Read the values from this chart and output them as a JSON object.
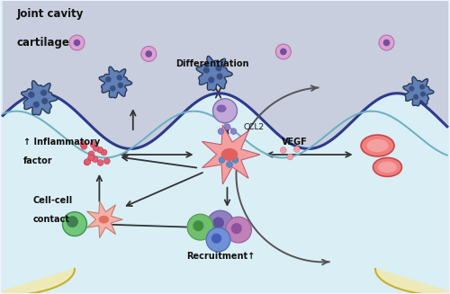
{
  "title": "Joint cavity",
  "cartilage_label": "cartilage",
  "bg_outer": "#f0f4ff",
  "border_color": "#4466aa",
  "cavity_color": "#c8cedd",
  "lower_color": "#daeef5",
  "wave_dark": "#2d3a8c",
  "wave_teal": "#6ab0c0",
  "wave_fill": "#bcc4d8",
  "bone_fill": "#eeeab8",
  "bone_edge": "#c8b030",
  "osteoclast_body": "#6080b8",
  "osteoclast_edge": "#2a3a5a",
  "osteoclast_nuc": "#3a5080",
  "floating_cell": "#e0a0d0",
  "floating_cell_ec": "#b070b0",
  "floating_nuc": "#7050a0",
  "asf_color": "#f5a0a0",
  "asf_edge": "#c06070",
  "asf_nuc": "#e06060",
  "asf_small_color": "#f5b0a8",
  "asf_small_nuc": "#e07060",
  "infl_dot": "#e06070",
  "infl_dot_ec": "#cc3050",
  "ccl2_dot": "#9080c8",
  "ccl2_dot_ec": "#7060a8",
  "vegf_dot": "#f0a0a8",
  "vegf_dot_ec": "#d08090",
  "blue_dot": "#5090d0",
  "blue_dot_ec": "#3070b0",
  "mono_color": "#c0a8d8",
  "mono_ec": "#8070b0",
  "mono_nuc": "#8060b0",
  "rbc_color": "#f08080",
  "rbc_ec": "#cc4444",
  "rbc_inner": "#f5a0a0",
  "cell_blue": "#7090d8",
  "cell_blue_ec": "#5070b0",
  "cell_blue_nuc": "#4060b8",
  "cell_green": "#70c070",
  "cell_green_ec": "#50a050",
  "cell_green_nuc": "#409040",
  "cell_purple": "#c080b8",
  "cell_purple_ec": "#a060a0",
  "cell_purple_nuc": "#9050a0",
  "cell_mauve": "#9080c0",
  "cell_mauve_ec": "#7060b0",
  "cell_mauve_nuc": "#6050a0",
  "green_lone": "#70c878",
  "green_lone_ec": "#409050",
  "green_lone_nuc": "#408050",
  "arc_color": "#555555",
  "arrow_color": "#333333",
  "text_color": "#111111",
  "labels": {
    "differentiation": "Differentiation",
    "ccl2": "CCL2",
    "vegf": "VEGF",
    "inflammatory_line1": "↑ Inflammatory",
    "inflammatory_line2": "factor",
    "cell_contact_line1": "Cell-cell",
    "cell_contact_line2": "contact",
    "recruitment": "Recruitment↑"
  }
}
